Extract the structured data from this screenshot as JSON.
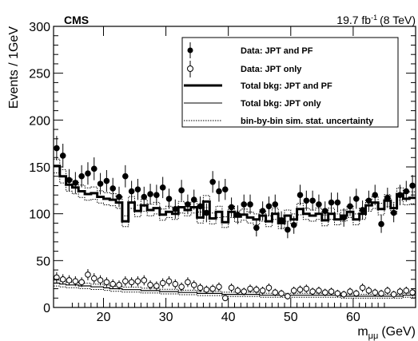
{
  "chart_data": {
    "type": "step-histogram",
    "experiment_label": "CMS",
    "lumi_label": {
      "value": "19.7 fb",
      "exponent": "-1",
      "energy": "(8 TeV)"
    },
    "ylabel": "Events / 1GeV",
    "xlabel": {
      "main": "m",
      "sub": "μμ",
      "unit": "(GeV)"
    },
    "xlim": [
      12,
      70
    ],
    "ylim": [
      0,
      300
    ],
    "x_ticks": [
      20,
      30,
      40,
      50,
      60
    ],
    "y_ticks": [
      0,
      50,
      100,
      150,
      200,
      250,
      300
    ],
    "legend": {
      "placement": "top-right",
      "entries": [
        {
          "key": "data_both",
          "label": "Data: JPT and PF"
        },
        {
          "key": "data_jpt",
          "label": "Data: JPT only"
        },
        {
          "key": "bkg_both",
          "label": "Total bkg: JPT and PF"
        },
        {
          "key": "bkg_jpt",
          "label": "Total bkg: JPT only"
        },
        {
          "key": "unc",
          "label": "bin-by-bin sim. stat. uncertainty"
        }
      ]
    },
    "bin_width": 1,
    "bin_low_edges": [
      12,
      13,
      14,
      15,
      16,
      17,
      18,
      19,
      20,
      21,
      22,
      23,
      24,
      25,
      26,
      27,
      28,
      29,
      30,
      31,
      32,
      33,
      34,
      35,
      36,
      37,
      38,
      39,
      40,
      41,
      42,
      43,
      44,
      45,
      46,
      47,
      48,
      49,
      50,
      51,
      52,
      53,
      54,
      55,
      56,
      57,
      58,
      59,
      60,
      61,
      62,
      63,
      64,
      65,
      66,
      67,
      68,
      69
    ],
    "series": [
      {
        "name": "Data: JPT and PF",
        "style": "filled-marker",
        "values": [
          170,
          162,
          136,
          133,
          140,
          143,
          148,
          132,
          135,
          127,
          118,
          140,
          124,
          126,
          118,
          121,
          120,
          128,
          116,
          105,
          125,
          110,
          115,
          108,
          101,
          134,
          124,
          126,
          107,
          99,
          110,
          110,
          85,
          103,
          108,
          110,
          93,
          83,
          88,
          120,
          114,
          114,
          110,
          103,
          112,
          112,
          96,
          108,
          116,
          104,
          114,
          120,
          89,
          117,
          101,
          120,
          124,
          130
        ]
      },
      {
        "name": "Data: JPT only",
        "style": "open-marker",
        "values": [
          32,
          30,
          29,
          28,
          27,
          35,
          31,
          29,
          27,
          25,
          24,
          28,
          27,
          28,
          29,
          24,
          23,
          26,
          28,
          25,
          22,
          27,
          24,
          21,
          19,
          20,
          22,
          10,
          21,
          18,
          17,
          20,
          19,
          18,
          21,
          16,
          15,
          12,
          18,
          19,
          20,
          17,
          18,
          16,
          17,
          15,
          14,
          17,
          15,
          21,
          18,
          16,
          15,
          18,
          14,
          17,
          18,
          16
        ]
      },
      {
        "name": "Total bkg: JPT and PF",
        "style": "thick-step",
        "values": [
          151,
          140,
          131,
          128,
          124,
          121,
          122,
          118,
          116,
          115,
          112,
          92,
          112,
          103,
          109,
          104,
          106,
          99,
          102,
          100,
          107,
          104,
          107,
          96,
          113,
          95,
          102,
          91,
          102,
          97,
          99,
          96,
          94,
          98,
          92,
          100,
          90,
          98,
          94,
          105,
          100,
          98,
          100,
          93,
          100,
          94,
          98,
          102,
          94,
          100,
          109,
          112,
          105,
          114,
          106,
          121,
          116,
          117
        ]
      },
      {
        "name": "Total bkg: JPT only",
        "style": "thin-step",
        "values": [
          26,
          25,
          24,
          24,
          23,
          23,
          22,
          22,
          21,
          20,
          20,
          19,
          19,
          19,
          18,
          18,
          18,
          17,
          17,
          17,
          16,
          16,
          16,
          15,
          15,
          15,
          15,
          14,
          14,
          14,
          14,
          14,
          14,
          13,
          13,
          13,
          13,
          13,
          13,
          13,
          13,
          13,
          13,
          13,
          13,
          13,
          12,
          12,
          12,
          12,
          12,
          12,
          12,
          12,
          12,
          12,
          13,
          13
        ]
      }
    ],
    "colors": {
      "axis": "#000000",
      "data": "#000000",
      "background": "#ffffff"
    }
  }
}
